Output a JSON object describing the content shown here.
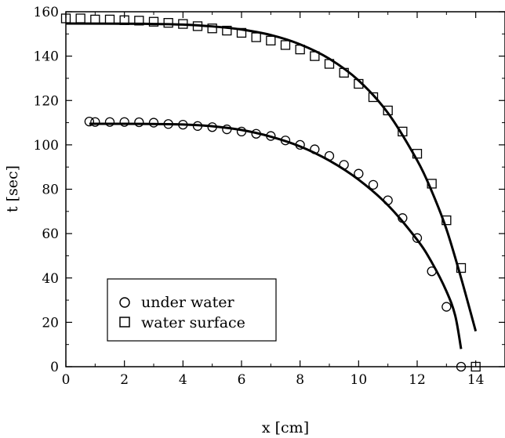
{
  "chart_data": {
    "type": "scatter",
    "title": "",
    "xlabel": "x [cm]",
    "ylabel": "t [sec]",
    "xlim": [
      0,
      15
    ],
    "ylim": [
      0,
      160
    ],
    "xticks": [
      0,
      2,
      4,
      6,
      8,
      10,
      12,
      14
    ],
    "yticks": [
      0,
      20,
      40,
      60,
      80,
      100,
      120,
      140,
      160
    ],
    "grid": false,
    "legend_position": "bottom-left",
    "series": [
      {
        "name": "under water",
        "marker": "circle",
        "points": [
          [
            0.8,
            110.5
          ],
          [
            1.0,
            110.3
          ],
          [
            1.5,
            110.3
          ],
          [
            2.0,
            110.3
          ],
          [
            2.5,
            110.2
          ],
          [
            3.0,
            110.0
          ],
          [
            3.5,
            109.4
          ],
          [
            4.0,
            109.1
          ],
          [
            4.5,
            108.5
          ],
          [
            5.0,
            108.0
          ],
          [
            5.5,
            107.0
          ],
          [
            6.0,
            106.0
          ],
          [
            6.5,
            105.0
          ],
          [
            7.0,
            104.0
          ],
          [
            7.5,
            102.0
          ],
          [
            8.0,
            100.0
          ],
          [
            8.5,
            98.0
          ],
          [
            9.0,
            95.0
          ],
          [
            9.5,
            91.0
          ],
          [
            10.0,
            87.0
          ],
          [
            10.5,
            82.0
          ],
          [
            11.0,
            75.0
          ],
          [
            11.5,
            67.0
          ],
          [
            12.0,
            58.0
          ],
          [
            12.5,
            43.0
          ],
          [
            13.0,
            27.0
          ],
          [
            13.5,
            0.0
          ]
        ],
        "fit": [
          [
            0.8,
            109.5
          ],
          [
            2.0,
            109.5
          ],
          [
            3.0,
            109.4
          ],
          [
            4.0,
            109.2
          ],
          [
            5.0,
            108.4
          ],
          [
            6.0,
            106.7
          ],
          [
            7.0,
            103.7
          ],
          [
            8.0,
            99.3
          ],
          [
            9.0,
            92.9
          ],
          [
            10.0,
            84.3
          ],
          [
            11.0,
            72.8
          ],
          [
            12.0,
            57.2
          ],
          [
            12.5,
            47.0
          ],
          [
            13.0,
            34.0
          ],
          [
            13.3,
            23.0
          ],
          [
            13.5,
            8.0
          ]
        ]
      },
      {
        "name": "water surface",
        "marker": "square",
        "points": [
          [
            0.0,
            157.0
          ],
          [
            0.5,
            157.0
          ],
          [
            1.0,
            156.5
          ],
          [
            1.5,
            156.5
          ],
          [
            2.0,
            156.2
          ],
          [
            2.5,
            156.0
          ],
          [
            3.0,
            155.5
          ],
          [
            3.5,
            155.0
          ],
          [
            4.0,
            154.5
          ],
          [
            4.5,
            153.5
          ],
          [
            5.0,
            152.5
          ],
          [
            5.5,
            151.5
          ],
          [
            6.0,
            150.5
          ],
          [
            6.5,
            148.5
          ],
          [
            7.0,
            147.0
          ],
          [
            7.5,
            145.0
          ],
          [
            8.0,
            143.0
          ],
          [
            8.5,
            140.0
          ],
          [
            9.0,
            136.5
          ],
          [
            9.5,
            132.5
          ],
          [
            10.0,
            127.5
          ],
          [
            10.5,
            121.5
          ],
          [
            11.0,
            115.5
          ],
          [
            11.5,
            106.0
          ],
          [
            12.0,
            96.0
          ],
          [
            12.5,
            82.5
          ],
          [
            13.0,
            66.0
          ],
          [
            13.5,
            44.5
          ],
          [
            14.0,
            0.0
          ]
        ],
        "fit": [
          [
            0.0,
            154.7
          ],
          [
            2.0,
            154.6
          ],
          [
            3.0,
            154.5
          ],
          [
            4.0,
            154.2
          ],
          [
            5.0,
            153.4
          ],
          [
            6.0,
            152.0
          ],
          [
            7.0,
            149.5
          ],
          [
            8.0,
            145.3
          ],
          [
            9.0,
            138.8
          ],
          [
            10.0,
            129.0
          ],
          [
            11.0,
            114.4
          ],
          [
            12.0,
            93.0
          ],
          [
            12.5,
            79.0
          ],
          [
            13.0,
            62.0
          ],
          [
            13.5,
            40.0
          ],
          [
            14.0,
            16.0
          ]
        ]
      }
    ]
  }
}
